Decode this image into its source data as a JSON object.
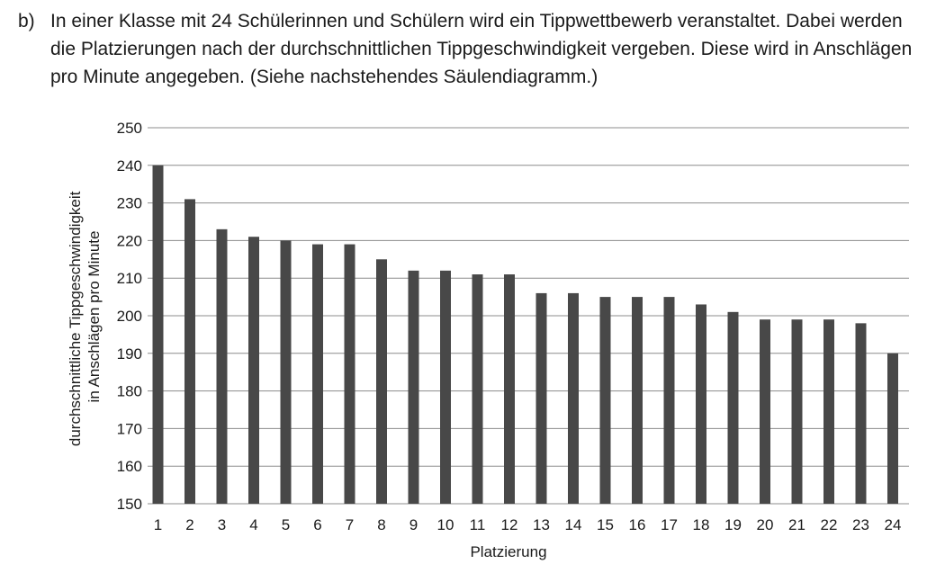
{
  "task": {
    "letter": "b)",
    "text": "In einer Klasse mit 24 Schülerinnen und Schülern wird ein Tippwettbewerb veranstaltet. Dabei werden die Platzierungen nach der durchschnittlichen Tippgeschwindigkeit vergeben. Diese wird in Anschlägen pro Minute angegeben. (Siehe nachstehendes Säulendiagramm.)"
  },
  "chart_data": {
    "type": "bar",
    "title": "",
    "categories": [
      "1",
      "2",
      "3",
      "4",
      "5",
      "6",
      "7",
      "8",
      "9",
      "10",
      "11",
      "12",
      "13",
      "14",
      "15",
      "16",
      "17",
      "18",
      "19",
      "20",
      "21",
      "22",
      "23",
      "24"
    ],
    "values": [
      240,
      231,
      223,
      221,
      220,
      219,
      219,
      215,
      212,
      212,
      211,
      211,
      206,
      206,
      205,
      205,
      205,
      203,
      201,
      199,
      199,
      199,
      198,
      190
    ],
    "xlabel": "Platzierung",
    "ylabel_lines": [
      "durchschnittliche Tippgeschwindigkeit",
      "in Anschlägen pro Minute"
    ],
    "ylim": [
      150,
      250
    ],
    "yticks": [
      "150",
      "160",
      "170",
      "180",
      "190",
      "200",
      "210",
      "220",
      "230",
      "240",
      "250"
    ],
    "grid": true,
    "bar_color": "#484848",
    "grid_color": "#8c8c8c"
  }
}
